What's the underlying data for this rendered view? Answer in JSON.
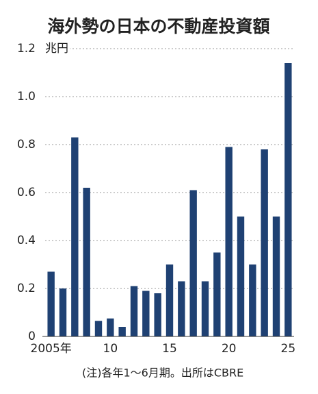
{
  "chart_data": {
    "type": "bar",
    "title": "海外勢の日本の不動産投資額",
    "unit": "兆円",
    "note": "(注)各年1～6月期。出所はCBRE",
    "categories": [
      "2005年",
      null,
      null,
      null,
      null,
      "10",
      null,
      null,
      null,
      null,
      "15",
      null,
      null,
      null,
      null,
      "20",
      null,
      null,
      null,
      null,
      "25"
    ],
    "values": [
      0.27,
      0.2,
      0.83,
      0.62,
      0.065,
      0.075,
      0.04,
      0.21,
      0.19,
      0.18,
      0.3,
      0.23,
      0.61,
      0.23,
      0.35,
      0.79,
      0.5,
      0.3,
      0.78,
      0.5,
      1.14
    ],
    "color": "#1f4173",
    "ylim": [
      0,
      1.2
    ],
    "yticks": [
      0,
      0.2,
      0.4,
      0.6,
      0.8,
      {
        "value": 1,
        "label": "1.0"
      },
      1.2
    ],
    "grid": true
  }
}
